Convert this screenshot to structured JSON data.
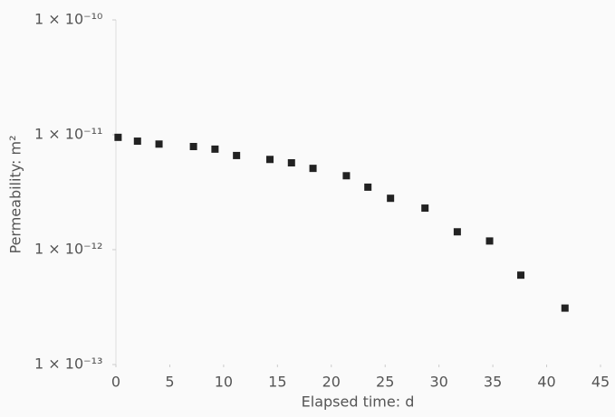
{
  "chart_data": {
    "type": "scatter",
    "x_label": "Elapsed time: d",
    "y_label": "Permeability: m²",
    "log_y": true,
    "color": "#222222",
    "xlim": [
      0,
      45
    ],
    "xticks": [
      0,
      5,
      10,
      15,
      20,
      25,
      30,
      35,
      40,
      45
    ],
    "ylim": [
      1e-13,
      1e-10
    ],
    "yticks": [
      {
        "value": 1e-13,
        "label": "1 × 10⁻¹³"
      },
      {
        "value": 1e-12,
        "label": "1 × 10⁻¹²"
      },
      {
        "value": 1e-11,
        "label": "1 × 10⁻¹¹"
      },
      {
        "value": 1e-10,
        "label": "1 × 10⁻¹⁰"
      }
    ],
    "x": [
      0.2,
      2.0,
      4.0,
      7.2,
      9.2,
      11.2,
      14.3,
      16.3,
      18.3,
      21.4,
      23.4,
      25.5,
      28.7,
      31.7,
      34.7,
      37.6,
      41.7
    ],
    "values": [
      9.5e-12,
      8.8e-12,
      8.3e-12,
      7.9e-12,
      7.5e-12,
      6.6e-12,
      6.1e-12,
      5.7e-12,
      5.1e-12,
      4.4e-12,
      3.5e-12,
      2.8e-12,
      2.3e-12,
      1.43e-12,
      1.19e-12,
      6e-13,
      3.1e-13
    ]
  }
}
